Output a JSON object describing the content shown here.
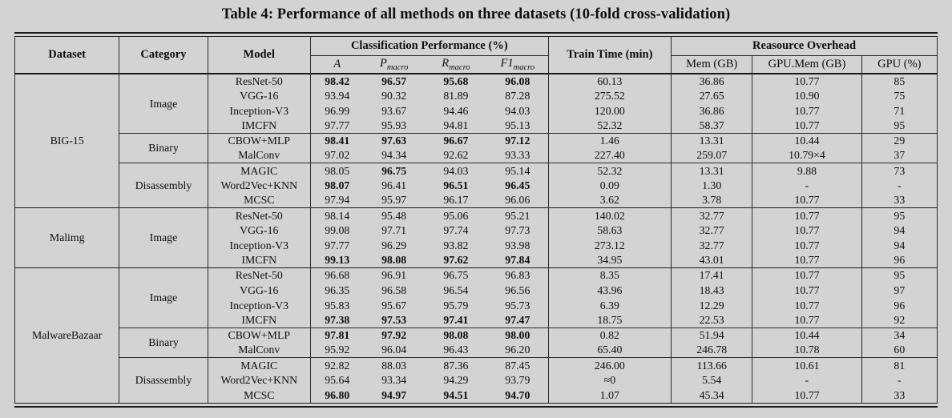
{
  "title": "Table 4: Performance of all methods on three datasets (10-fold cross-validation)",
  "colors": {
    "background": "#d3d3d3",
    "rule": "#1a1a1a",
    "text": "#0e0e0e"
  },
  "table": {
    "header": {
      "dataset": "Dataset",
      "category": "Category",
      "model": "Model",
      "classification_group": "Classification Performance (%)",
      "train_time": "Train Time (min)",
      "overhead_group": "Reasource Overhead",
      "metrics": [
        {
          "base": "A",
          "sub": ""
        },
        {
          "base": "P",
          "sub": "macro"
        },
        {
          "base": "R",
          "sub": "macro"
        },
        {
          "base": "F1",
          "sub": "macro"
        }
      ],
      "overhead_cols": [
        "Mem (GB)",
        "GPU.Mem (GB)",
        "GPU (%)"
      ]
    },
    "datasets": [
      {
        "name": "BIG-15",
        "categories": [
          {
            "name": "Image",
            "rows": [
              {
                "model": "ResNet-50",
                "values": [
                  "98.42",
                  "96.57",
                  "95.68",
                  "96.08"
                ],
                "bold": [
                  1,
                  1,
                  1,
                  1
                ],
                "train": "60.13",
                "mem": "36.86",
                "gpu_mem": "10.77",
                "gpu": "85"
              },
              {
                "model": "VGG-16",
                "values": [
                  "93.94",
                  "90.32",
                  "81.89",
                  "87.28"
                ],
                "bold": [
                  0,
                  0,
                  0,
                  0
                ],
                "train": "275.52",
                "mem": "27.65",
                "gpu_mem": "10.90",
                "gpu": "75"
              },
              {
                "model": "Inception-V3",
                "values": [
                  "96.99",
                  "93.67",
                  "94.46",
                  "94.03"
                ],
                "bold": [
                  0,
                  0,
                  0,
                  0
                ],
                "train": "120.00",
                "mem": "36.86",
                "gpu_mem": "10.77",
                "gpu": "71"
              },
              {
                "model": "IMCFN",
                "values": [
                  "97.77",
                  "95.93",
                  "94.81",
                  "95.13"
                ],
                "bold": [
                  0,
                  0,
                  0,
                  0
                ],
                "train": "52.32",
                "mem": "58.37",
                "gpu_mem": "10.77",
                "gpu": "95"
              }
            ]
          },
          {
            "name": "Binary",
            "rows": [
              {
                "model": "CBOW+MLP",
                "values": [
                  "98.41",
                  "97.63",
                  "96.67",
                  "97.12"
                ],
                "bold": [
                  1,
                  1,
                  1,
                  1
                ],
                "train": "1.46",
                "mem": "13.31",
                "gpu_mem": "10.44",
                "gpu": "29"
              },
              {
                "model": "MalConv",
                "values": [
                  "97.02",
                  "94.34",
                  "92.62",
                  "93.33"
                ],
                "bold": [
                  0,
                  0,
                  0,
                  0
                ],
                "train": "227.40",
                "mem": "259.07",
                "gpu_mem": "10.79×4",
                "gpu": "37"
              }
            ]
          },
          {
            "name": "Disassembly",
            "rows": [
              {
                "model": "MAGIC",
                "values": [
                  "98.05",
                  "96.75",
                  "94.03",
                  "95.14"
                ],
                "bold": [
                  0,
                  1,
                  0,
                  0
                ],
                "train": "52.32",
                "mem": "13.31",
                "gpu_mem": "9.88",
                "gpu": "73"
              },
              {
                "model": "Word2Vec+KNN",
                "values": [
                  "98.07",
                  "96.41",
                  "96.51",
                  "96.45"
                ],
                "bold": [
                  1,
                  0,
                  1,
                  1
                ],
                "train": "0.09",
                "mem": "1.30",
                "gpu_mem": "-",
                "gpu": "-"
              },
              {
                "model": "MCSC",
                "values": [
                  "97.94",
                  "95.97",
                  "96.17",
                  "96.06"
                ],
                "bold": [
                  0,
                  0,
                  0,
                  0
                ],
                "train": "3.62",
                "mem": "3.78",
                "gpu_mem": "10.77",
                "gpu": "33"
              }
            ]
          }
        ]
      },
      {
        "name": "Malimg",
        "categories": [
          {
            "name": "Image",
            "rows": [
              {
                "model": "ResNet-50",
                "values": [
                  "98.14",
                  "95.48",
                  "95.06",
                  "95.21"
                ],
                "bold": [
                  0,
                  0,
                  0,
                  0
                ],
                "train": "140.02",
                "mem": "32.77",
                "gpu_mem": "10.77",
                "gpu": "95"
              },
              {
                "model": "VGG-16",
                "values": [
                  "99.08",
                  "97.71",
                  "97.74",
                  "97.73"
                ],
                "bold": [
                  0,
                  0,
                  0,
                  0
                ],
                "train": "58.63",
                "mem": "32.77",
                "gpu_mem": "10.77",
                "gpu": "94"
              },
              {
                "model": "Inception-V3",
                "values": [
                  "97.77",
                  "96.29",
                  "93.82",
                  "93.98"
                ],
                "bold": [
                  0,
                  0,
                  0,
                  0
                ],
                "train": "273.12",
                "mem": "32.77",
                "gpu_mem": "10.77",
                "gpu": "94"
              },
              {
                "model": "IMCFN",
                "values": [
                  "99.13",
                  "98.08",
                  "97.62",
                  "97.84"
                ],
                "bold": [
                  1,
                  1,
                  1,
                  1
                ],
                "train": "34.95",
                "mem": "43.01",
                "gpu_mem": "10.77",
                "gpu": "96"
              }
            ]
          }
        ]
      },
      {
        "name": "MalwareBazaar",
        "categories": [
          {
            "name": "Image",
            "rows": [
              {
                "model": "ResNet-50",
                "values": [
                  "96.68",
                  "96.91",
                  "96.75",
                  "96.83"
                ],
                "bold": [
                  0,
                  0,
                  0,
                  0
                ],
                "train": "8.35",
                "mem": "17.41",
                "gpu_mem": "10.77",
                "gpu": "95"
              },
              {
                "model": "VGG-16",
                "values": [
                  "96.35",
                  "96.58",
                  "96.54",
                  "96.56"
                ],
                "bold": [
                  0,
                  0,
                  0,
                  0
                ],
                "train": "43.96",
                "mem": "18.43",
                "gpu_mem": "10.77",
                "gpu": "97"
              },
              {
                "model": "Inception-V3",
                "values": [
                  "95.83",
                  "95.67",
                  "95.79",
                  "95.73"
                ],
                "bold": [
                  0,
                  0,
                  0,
                  0
                ],
                "train": "6.39",
                "mem": "12.29",
                "gpu_mem": "10.77",
                "gpu": "96"
              },
              {
                "model": "IMCFN",
                "values": [
                  "97.38",
                  "97.53",
                  "97.41",
                  "97.47"
                ],
                "bold": [
                  1,
                  1,
                  1,
                  1
                ],
                "train": "18.75",
                "mem": "22.53",
                "gpu_mem": "10.77",
                "gpu": "92"
              }
            ]
          },
          {
            "name": "Binary",
            "rows": [
              {
                "model": "CBOW+MLP",
                "values": [
                  "97.81",
                  "97.92",
                  "98.08",
                  "98.00"
                ],
                "bold": [
                  1,
                  1,
                  1,
                  1
                ],
                "train": "0.82",
                "mem": "51.94",
                "gpu_mem": "10.44",
                "gpu": "34"
              },
              {
                "model": "MalConv",
                "values": [
                  "95.92",
                  "96.04",
                  "96.43",
                  "96.20"
                ],
                "bold": [
                  0,
                  0,
                  0,
                  0
                ],
                "train": "65.40",
                "mem": "246.78",
                "gpu_mem": "10.78",
                "gpu": "60"
              }
            ]
          },
          {
            "name": "Disassembly",
            "rows": [
              {
                "model": "MAGIC",
                "values": [
                  "92.82",
                  "88.03",
                  "87.36",
                  "87.45"
                ],
                "bold": [
                  0,
                  0,
                  0,
                  0
                ],
                "train": "246.00",
                "mem": "113.66",
                "gpu_mem": "10.61",
                "gpu": "81"
              },
              {
                "model": "Word2Vec+KNN",
                "values": [
                  "95.64",
                  "93.34",
                  "94.29",
                  "93.79"
                ],
                "bold": [
                  0,
                  0,
                  0,
                  0
                ],
                "train": "≈0",
                "mem": "5.54",
                "gpu_mem": "-",
                "gpu": "-"
              },
              {
                "model": "MCSC",
                "values": [
                  "96.80",
                  "94.97",
                  "94.51",
                  "94.70"
                ],
                "bold": [
                  1,
                  1,
                  1,
                  1
                ],
                "train": "1.07",
                "mem": "45.34",
                "gpu_mem": "10.77",
                "gpu": "33"
              }
            ]
          }
        ]
      }
    ]
  }
}
